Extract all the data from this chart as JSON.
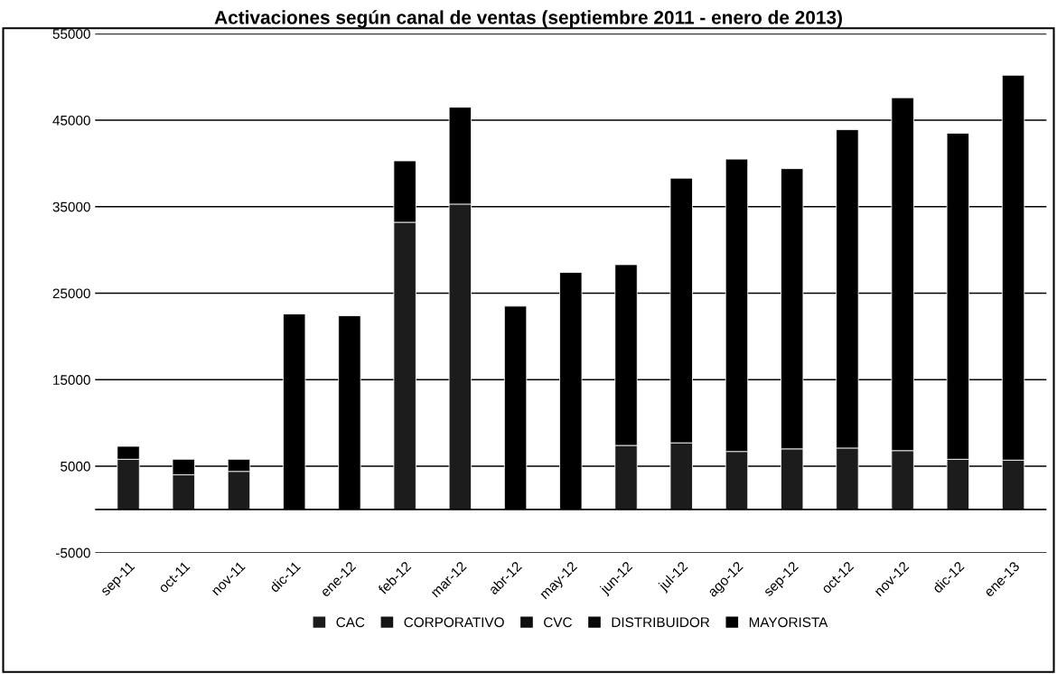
{
  "chart_data": {
    "type": "bar",
    "stacked": true,
    "title": "Activaciones según canal de ventas (septiembre 2011 - enero de 2013)",
    "categories": [
      "sep-11",
      "oct-11",
      "nov-11",
      "dic-11",
      "ene-12",
      "feb-12",
      "mar-12",
      "abr-12",
      "may-12",
      "jun-12",
      "jul-12",
      "ago-12",
      "sep-12",
      "oct-12",
      "nov-12",
      "dic-12",
      "ene-13"
    ],
    "series": [
      {
        "name": "CAC",
        "color": "#1c1c1c",
        "values": [
          5800,
          4000,
          4400,
          null,
          null,
          33200,
          35300,
          null,
          null,
          7400,
          7700,
          6700,
          7000,
          7100,
          6800,
          5800,
          5700
        ]
      },
      {
        "name": "CORPORATIVO",
        "color": "#141414",
        "values": [
          null,
          null,
          null,
          null,
          null,
          null,
          null,
          null,
          null,
          null,
          null,
          null,
          null,
          null,
          null,
          null,
          null
        ]
      },
      {
        "name": "CVC",
        "color": "#0e0e0e",
        "values": [
          null,
          null,
          null,
          null,
          null,
          null,
          null,
          null,
          null,
          null,
          null,
          null,
          null,
          null,
          null,
          null,
          null
        ]
      },
      {
        "name": "DISTRIBUIDOR",
        "color": "#080808",
        "values": [
          null,
          null,
          null,
          null,
          null,
          null,
          null,
          null,
          null,
          null,
          null,
          null,
          null,
          null,
          null,
          null,
          null
        ]
      },
      {
        "name": "MAYORISTA",
        "color": "#000000",
        "values": [
          1500,
          1800,
          1400,
          22600,
          22400,
          7100,
          11200,
          23500,
          27400,
          20900,
          30600,
          33800,
          32400,
          36800,
          40800,
          37700,
          44500
        ]
      }
    ],
    "ylim": [
      -5000,
      55000
    ],
    "yticks": [
      -5000,
      5000,
      15000,
      25000,
      35000,
      45000,
      55000
    ],
    "grid": "y",
    "legend": "bottom"
  }
}
